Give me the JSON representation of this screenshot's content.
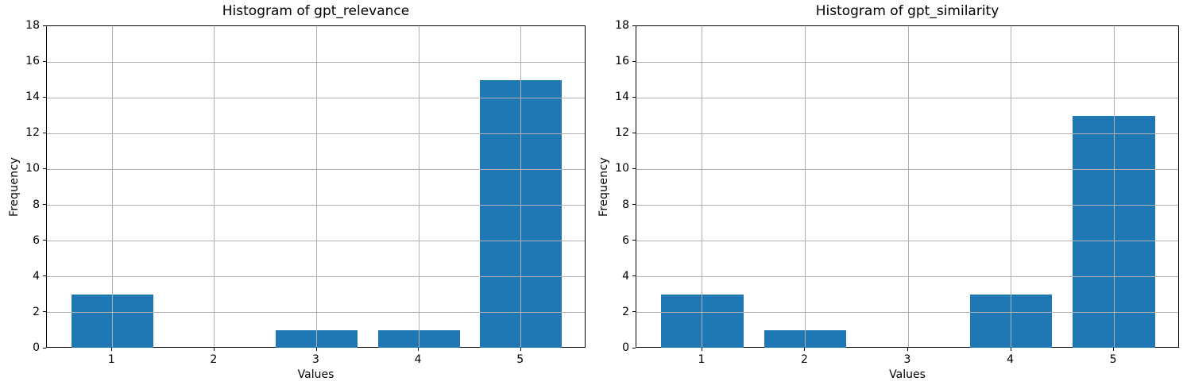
{
  "figure": {
    "background": "#ffffff",
    "bar_color": "#1f77b4",
    "grid_color": "#b0b0b0",
    "spine_color": "#000000",
    "text_color": "#000000"
  },
  "chart_data": [
    {
      "type": "bar",
      "title": "Histogram of gpt_relevance",
      "xlabel": "Values",
      "ylabel": "Frequency",
      "categories": [
        1,
        2,
        3,
        4,
        5
      ],
      "values": [
        3,
        0,
        1,
        1,
        15
      ],
      "bar_width": 0.8,
      "xticks": [
        1,
        2,
        3,
        4,
        5
      ],
      "yticks": [
        0,
        2,
        4,
        6,
        8,
        10,
        12,
        14,
        16,
        18
      ],
      "xlim": [
        0.36,
        5.64
      ],
      "ylim": [
        0,
        18
      ],
      "grid": true,
      "legend_position": "none"
    },
    {
      "type": "bar",
      "title": "Histogram of gpt_similarity",
      "xlabel": "Values",
      "ylabel": "Frequency",
      "categories": [
        1,
        2,
        3,
        4,
        5
      ],
      "values": [
        3,
        1,
        0,
        3,
        13
      ],
      "bar_width": 0.8,
      "xticks": [
        1,
        2,
        3,
        4,
        5
      ],
      "yticks": [
        0,
        2,
        4,
        6,
        8,
        10,
        12,
        14,
        16,
        18
      ],
      "xlim": [
        0.36,
        5.64
      ],
      "ylim": [
        0,
        18
      ],
      "grid": true,
      "legend_position": "none"
    }
  ]
}
